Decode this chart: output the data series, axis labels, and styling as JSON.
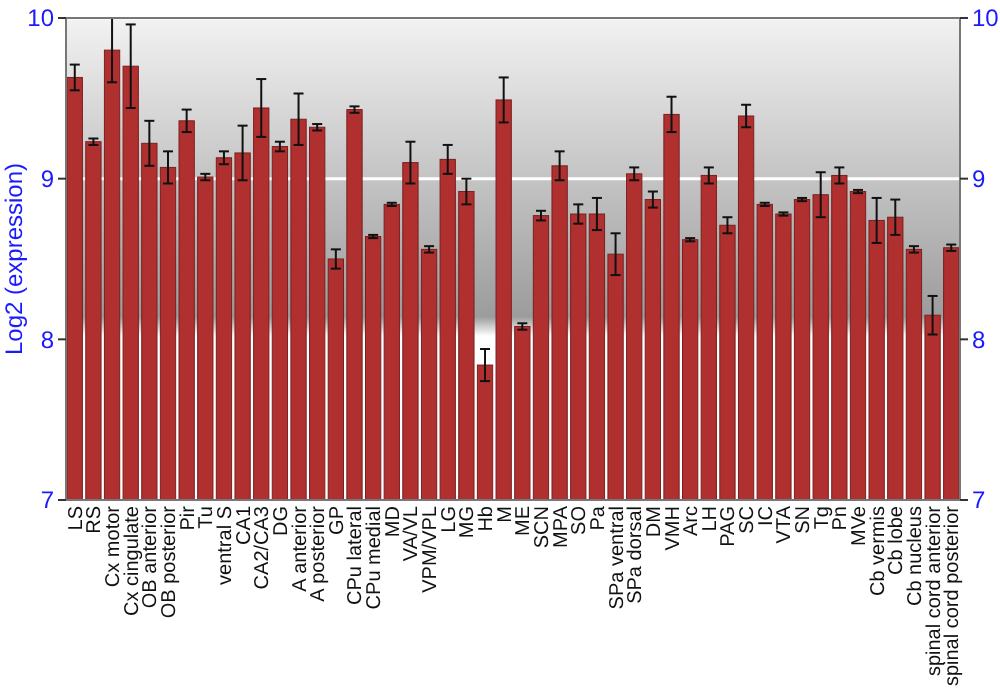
{
  "chart_data": {
    "type": "bar",
    "ylabel": "Log2 (expression)",
    "categories": [
      "LS",
      "RS",
      "Cx motor",
      "Cx cingulate",
      "OB anterior",
      "OB posterior",
      "Pir",
      "Tu",
      "ventral S",
      "CA1",
      "CA2/CA3",
      "DG",
      "A anterior",
      "A posterior",
      "GP",
      "CPu lateral",
      "CPu medial",
      "MD",
      "VA/VL",
      "VPM/VPL",
      "LG",
      "MG",
      "Hb",
      "M",
      "ME",
      "SCN",
      "MPA",
      "SO",
      "Pa",
      "SPa ventral",
      "SPa dorsal",
      "DM",
      "VMH",
      "Arc",
      "LH",
      "PAG",
      "SC",
      "IC",
      "VTA",
      "SN",
      "Tg",
      "Pn",
      "MVe",
      "Cb vermis",
      "Cb lobe",
      "Cb nucleus",
      "spinal cord anterior",
      "spinal cord posterior"
    ],
    "values": [
      9.63,
      9.23,
      9.8,
      9.7,
      9.22,
      9.07,
      9.36,
      9.01,
      9.13,
      9.16,
      9.44,
      9.2,
      9.37,
      9.32,
      8.5,
      9.43,
      8.64,
      8.84,
      9.1,
      8.56,
      9.12,
      8.92,
      7.84,
      9.49,
      8.08,
      8.77,
      9.08,
      8.78,
      8.78,
      8.53,
      9.03,
      8.87,
      9.4,
      8.62,
      9.02,
      8.71,
      9.39,
      8.84,
      8.78,
      8.87,
      8.9,
      9.02,
      8.92,
      8.74,
      8.76,
      8.56,
      8.15,
      8.57
    ],
    "errors": [
      0.08,
      0.02,
      0.2,
      0.26,
      0.14,
      0.1,
      0.07,
      0.02,
      0.04,
      0.17,
      0.18,
      0.03,
      0.16,
      0.02,
      0.06,
      0.02,
      0.01,
      0.01,
      0.13,
      0.02,
      0.09,
      0.08,
      0.1,
      0.14,
      0.02,
      0.03,
      0.09,
      0.06,
      0.1,
      0.13,
      0.04,
      0.05,
      0.11,
      0.01,
      0.05,
      0.05,
      0.07,
      0.01,
      0.01,
      0.01,
      0.14,
      0.05,
      0.01,
      0.14,
      0.11,
      0.02,
      0.12,
      0.02
    ],
    "color": "#b03030",
    "ylim": [
      7,
      10
    ],
    "yticks": [
      7,
      8,
      9,
      10
    ],
    "y2lim": [
      7,
      10
    ],
    "y2ticks": [
      7,
      8,
      9,
      10
    ],
    "grid": "y"
  }
}
